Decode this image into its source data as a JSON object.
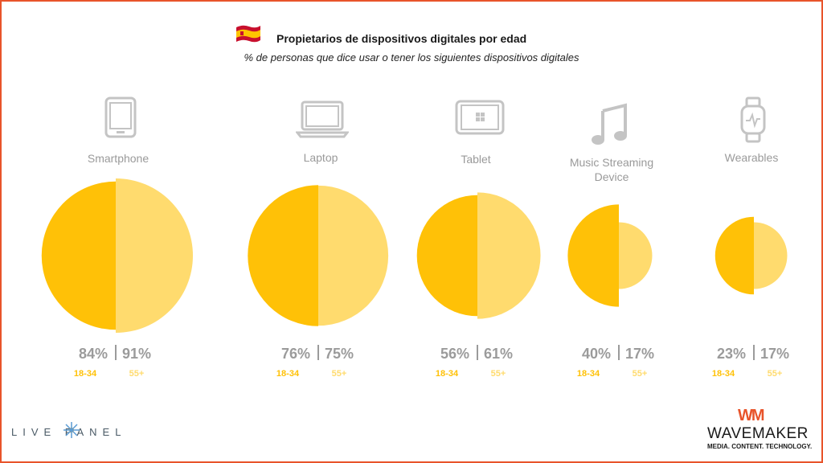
{
  "header": {
    "title": "Propietarios de dispositivos digitales por edad",
    "subtitle": "% de personas que dice usar o tener los siguientes dispositivos digitales",
    "flag_icon": "spain-flag-icon"
  },
  "chart_data": {
    "type": "half-circle-proportional",
    "title": "Propietarios de dispositivos digitales por edad",
    "subtitle": "% de personas que dice usar o tener los siguientes dispositivos digitales",
    "unit": "%",
    "categories": [
      "Smartphone",
      "Laptop",
      "Tablet",
      "Music Streaming Device",
      "Wearables"
    ],
    "category_icons": [
      "tablet-phone-icon",
      "laptop-icon",
      "tablet-icon",
      "music-note-icon",
      "smartwatch-icon"
    ],
    "series": [
      {
        "name": "18-34",
        "values": [
          84,
          76,
          56,
          40,
          23
        ],
        "color": "#ffc107"
      },
      {
        "name": "55+",
        "values": [
          91,
          75,
          61,
          17,
          17
        ],
        "color": "#ffdb6e"
      }
    ],
    "value_labels": [
      [
        "84%",
        "91%"
      ],
      [
        "76%",
        "75%"
      ],
      [
        "56%",
        "61%"
      ],
      [
        "40%",
        "17%"
      ],
      [
        "23%",
        "17%"
      ]
    ]
  },
  "branding": {
    "left_logo": "LIVE PANEL",
    "right_logo_mark": "WM",
    "right_logo_name": "WAVEMAKER",
    "right_logo_tagline": "MEDIA. CONTENT. TECHNOLOGY."
  },
  "colors": {
    "accent": "#e8542b",
    "young": "#ffc107",
    "old": "#ffdb6e",
    "icon_gray": "#c4c4c4",
    "text_gray": "#9b9b9b"
  }
}
